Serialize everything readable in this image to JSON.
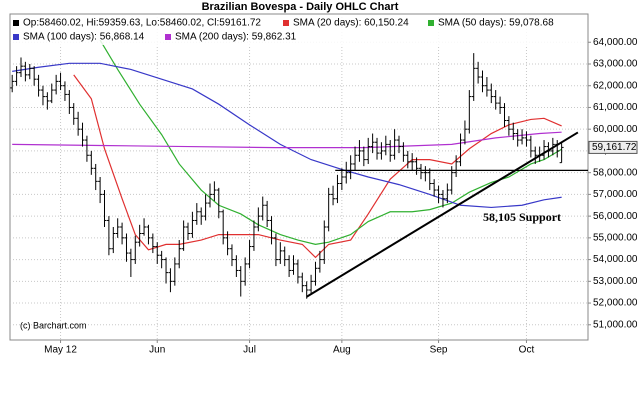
{
  "chart_data": {
    "type": "ohlc",
    "title": "Brazilian Bovespa - Daily OHLC Chart",
    "credit": "(c) Barchart.com",
    "ohlc_name": "Op:58460.02, Hi:59359.63, Lo:58460.02, Cl:59161.72",
    "ohlc_color": "#000000",
    "last_label": "59,161.72",
    "ohlc": [
      [
        61900,
        62500,
        61700,
        62200
      ],
      [
        62200,
        62900,
        62000,
        62600
      ],
      [
        62600,
        63300,
        62400,
        62900
      ],
      [
        62900,
        63100,
        62200,
        62500
      ],
      [
        62500,
        63000,
        62300,
        62800
      ],
      [
        62800,
        62900,
        62000,
        62300
      ],
      [
        62300,
        62500,
        61500,
        61800
      ],
      [
        61800,
        62000,
        61100,
        61500
      ],
      [
        61500,
        61700,
        60900,
        61300
      ],
      [
        61300,
        62100,
        61200,
        61800
      ],
      [
        61800,
        62500,
        61600,
        62200
      ],
      [
        62200,
        62600,
        61800,
        62000
      ],
      [
        62000,
        62200,
        61300,
        61600
      ],
      [
        61600,
        61800,
        60700,
        61000
      ],
      [
        61000,
        61200,
        60200,
        60500
      ],
      [
        60500,
        60800,
        59700,
        60000
      ],
      [
        60000,
        60300,
        59200,
        59500
      ],
      [
        59500,
        59700,
        58500,
        58800
      ],
      [
        58800,
        59000,
        57900,
        58200
      ],
      [
        58200,
        58400,
        57200,
        57600
      ],
      [
        57600,
        57800,
        56600,
        57000
      ],
      [
        57000,
        57200,
        55500,
        55800
      ],
      [
        55800,
        56000,
        54200,
        54500
      ],
      [
        54500,
        55500,
        54300,
        55200
      ],
      [
        55200,
        55900,
        55000,
        55500
      ],
      [
        55500,
        55700,
        54700,
        55000
      ],
      [
        55000,
        55200,
        53900,
        54300
      ],
      [
        54300,
        54500,
        53200,
        54000
      ],
      [
        54000,
        55100,
        53800,
        54800
      ],
      [
        54800,
        55600,
        54600,
        55200
      ],
      [
        55200,
        55900,
        55100,
        55500
      ],
      [
        55500,
        55600,
        54700,
        55000
      ],
      [
        55000,
        55200,
        54300,
        54600
      ],
      [
        54600,
        54800,
        53800,
        54200
      ],
      [
        54200,
        54400,
        53600,
        54000
      ],
      [
        54000,
        54100,
        52900,
        53400
      ],
      [
        53400,
        53600,
        52500,
        53000
      ],
      [
        53000,
        54100,
        52800,
        53800
      ],
      [
        53800,
        54900,
        53600,
        54500
      ],
      [
        54500,
        55800,
        54400,
        55500
      ],
      [
        55500,
        55700,
        54900,
        55200
      ],
      [
        55200,
        56200,
        55000,
        55800
      ],
      [
        55800,
        56600,
        55600,
        56200
      ],
      [
        56200,
        56400,
        55600,
        56000
      ],
      [
        56000,
        57000,
        55800,
        56600
      ],
      [
        56600,
        57500,
        56400,
        57000
      ],
      [
        57000,
        57600,
        56700,
        57200
      ],
      [
        57200,
        57300,
        55900,
        56200
      ],
      [
        56200,
        56300,
        54700,
        55000
      ],
      [
        55000,
        55300,
        54200,
        54500
      ],
      [
        54500,
        54700,
        53700,
        54000
      ],
      [
        54000,
        54200,
        53200,
        53500
      ],
      [
        53500,
        53700,
        52300,
        53000
      ],
      [
        53000,
        54100,
        52800,
        53800
      ],
      [
        53800,
        54900,
        53600,
        54600
      ],
      [
        54600,
        55800,
        54400,
        55500
      ],
      [
        55500,
        56400,
        55300,
        56000
      ],
      [
        56000,
        56900,
        55800,
        56500
      ],
      [
        56500,
        56700,
        55500,
        55800
      ],
      [
        55800,
        56000,
        54700,
        55000
      ],
      [
        55000,
        55200,
        53700,
        54000
      ],
      [
        54000,
        54800,
        53800,
        54400
      ],
      [
        54400,
        54600,
        53700,
        54000
      ],
      [
        54000,
        54200,
        53200,
        53500
      ],
      [
        53500,
        54200,
        53300,
        53800
      ],
      [
        53800,
        54000,
        52900,
        53200
      ],
      [
        53200,
        53400,
        52500,
        52800
      ],
      [
        52800,
        53000,
        52200,
        52600
      ],
      [
        52600,
        53300,
        52400,
        53000
      ],
      [
        53000,
        53900,
        52800,
        53600
      ],
      [
        53600,
        54400,
        53400,
        54000
      ],
      [
        54000,
        55800,
        53800,
        55500
      ],
      [
        55500,
        57300,
        55300,
        57000
      ],
      [
        57000,
        57400,
        56500,
        56800
      ],
      [
        56800,
        57900,
        56600,
        57500
      ],
      [
        57500,
        58200,
        57200,
        57800
      ],
      [
        57800,
        58500,
        57500,
        58000
      ],
      [
        58000,
        58800,
        57700,
        58400
      ],
      [
        58400,
        59200,
        58100,
        58800
      ],
      [
        58800,
        59500,
        58500,
        59000
      ],
      [
        59000,
        59200,
        58300,
        58600
      ],
      [
        58600,
        59600,
        58400,
        59200
      ],
      [
        59200,
        59800,
        58900,
        59400
      ],
      [
        59400,
        59600,
        58600,
        58900
      ],
      [
        58900,
        59400,
        58600,
        59000
      ],
      [
        59000,
        59700,
        58800,
        59300
      ],
      [
        59300,
        59500,
        58500,
        58800
      ],
      [
        58800,
        60000,
        58600,
        59500
      ],
      [
        59500,
        59700,
        58900,
        59200
      ],
      [
        59200,
        59400,
        58500,
        58800
      ],
      [
        58800,
        59000,
        58200,
        58500
      ],
      [
        58500,
        58900,
        58100,
        58500
      ],
      [
        58500,
        58700,
        57900,
        58200
      ],
      [
        58200,
        58400,
        57700,
        58000
      ],
      [
        58000,
        58300,
        57600,
        58000
      ],
      [
        58000,
        58200,
        57200,
        57500
      ],
      [
        57500,
        57700,
        56900,
        57200
      ],
      [
        57200,
        57400,
        56600,
        57000
      ],
      [
        57000,
        57200,
        56400,
        56800
      ],
      [
        56800,
        57500,
        56600,
        57200
      ],
      [
        57200,
        58300,
        57000,
        58000
      ],
      [
        58000,
        58800,
        57800,
        58500
      ],
      [
        58500,
        59800,
        58300,
        59500
      ],
      [
        59500,
        60400,
        59300,
        60000
      ],
      [
        60000,
        61800,
        59800,
        61500
      ],
      [
        61500,
        63500,
        61300,
        62800
      ],
      [
        62800,
        63100,
        62100,
        62400
      ],
      [
        62400,
        62700,
        61700,
        62000
      ],
      [
        62000,
        62400,
        61500,
        61800
      ],
      [
        61800,
        62100,
        61200,
        61500
      ],
      [
        61500,
        61800,
        60900,
        61200
      ],
      [
        61200,
        61500,
        60700,
        61000
      ],
      [
        61000,
        61200,
        60100,
        60400
      ],
      [
        60400,
        60600,
        59700,
        60000
      ],
      [
        60000,
        60300,
        59500,
        59800
      ],
      [
        59800,
        60000,
        59200,
        59500
      ],
      [
        59500,
        60000,
        59300,
        59600
      ],
      [
        59600,
        59900,
        59200,
        59500
      ],
      [
        59500,
        59700,
        58700,
        59000
      ],
      [
        59000,
        59200,
        58400,
        58800
      ],
      [
        58800,
        59200,
        58500,
        58800
      ],
      [
        58800,
        59500,
        58600,
        59200
      ],
      [
        59200,
        59400,
        58700,
        59000
      ],
      [
        59000,
        59600,
        58800,
        59300
      ],
      [
        59300,
        59500,
        58700,
        59000
      ],
      [
        58460.02,
        59359.63,
        58460.02,
        59161.72
      ]
    ],
    "series": [
      {
        "name": "SMA (20 days): 60,150.24",
        "color": "#e03030",
        "x": [
          14,
          18,
          21,
          25,
          28,
          31,
          35,
          38,
          43,
          47,
          52,
          56,
          61,
          66,
          69,
          72,
          77,
          81,
          86,
          91,
          95,
          100,
          104,
          109,
          113,
          118,
          121,
          125
        ],
        "values": [
          62500,
          61400,
          59100,
          56800,
          55150,
          54450,
          54700,
          54700,
          54900,
          55150,
          55150,
          55150,
          54900,
          54700,
          54100,
          54700,
          54900,
          56100,
          57700,
          58600,
          58600,
          58400,
          59100,
          59800,
          60200,
          60450,
          60500,
          60150.24
        ]
      },
      {
        "name": "SMA (50 days): 59,078.68",
        "color": "#30b030",
        "x": [
          20,
          24,
          29,
          34,
          38,
          43,
          47,
          52,
          56,
          61,
          65,
          69,
          72,
          77,
          81,
          86,
          91,
          95,
          100,
          104,
          109,
          113,
          118,
          121,
          125
        ],
        "values": [
          64100,
          62750,
          61150,
          59750,
          58400,
          57200,
          56500,
          56100,
          55600,
          55150,
          54900,
          54700,
          54800,
          55150,
          55750,
          56200,
          56200,
          56300,
          56600,
          57100,
          57550,
          57800,
          58400,
          58600,
          59078.68
        ]
      },
      {
        "name": "SMA (100 days): 56,868.14",
        "color": "#3838c8",
        "x": [
          0,
          6,
          13,
          20,
          27,
          34,
          41,
          47,
          54,
          61,
          68,
          75,
          81,
          88,
          95,
          102,
          109,
          116,
          121,
          125
        ],
        "values": [
          62660,
          62850,
          63030,
          63030,
          62750,
          62300,
          61850,
          61150,
          60200,
          59300,
          58600,
          58150,
          57800,
          57450,
          57000,
          56500,
          56400,
          56500,
          56750,
          56868.14
        ]
      },
      {
        "name": "SMA (200 days): 59,862.31",
        "color": "#b030d0",
        "x": [
          0,
          20,
          40,
          60,
          80,
          100,
          110,
          120,
          125
        ],
        "values": [
          59300,
          59250,
          59200,
          59150,
          59150,
          59300,
          59600,
          59800,
          59862.31
        ]
      }
    ],
    "xlim": [
      -0.5,
      131
    ],
    "xticks": [
      {
        "value": 11,
        "label": "May 12"
      },
      {
        "value": 33,
        "label": "Jun"
      },
      {
        "value": 54,
        "label": "Jul"
      },
      {
        "value": 75,
        "label": "Aug"
      },
      {
        "value": 97,
        "label": "Sep"
      },
      {
        "value": 117,
        "label": "Oct"
      }
    ],
    "ylim": [
      50300,
      65300
    ],
    "yticks": [
      {
        "value": 51000,
        "label": "51,000.00"
      },
      {
        "value": 52000,
        "label": "52,000.00"
      },
      {
        "value": 53000,
        "label": "53,000.00"
      },
      {
        "value": 54000,
        "label": "54,000.00"
      },
      {
        "value": 55000,
        "label": "55,000.00"
      },
      {
        "value": 56000,
        "label": "56,000.00"
      },
      {
        "value": 57000,
        "label": "57,000.00"
      },
      {
        "value": 58000,
        "label": "58,000.00"
      },
      {
        "value": 59000,
        "label": "59,000.00"
      },
      {
        "value": 60000,
        "label": "60,000.00"
      },
      {
        "value": 61000,
        "label": "61,000.00"
      },
      {
        "value": 62000,
        "label": "62,000.00"
      },
      {
        "value": 63000,
        "label": "63,000.00"
      },
      {
        "value": 64000,
        "label": "64,000.00"
      }
    ],
    "grid": true,
    "annotations": {
      "support": {
        "value": 58105,
        "label": "58,105 Support",
        "x": [
          73.5,
          131
        ]
      },
      "trendline": {
        "x": [
          67,
          128.7
        ],
        "y": [
          52290,
          59850
        ]
      }
    }
  }
}
